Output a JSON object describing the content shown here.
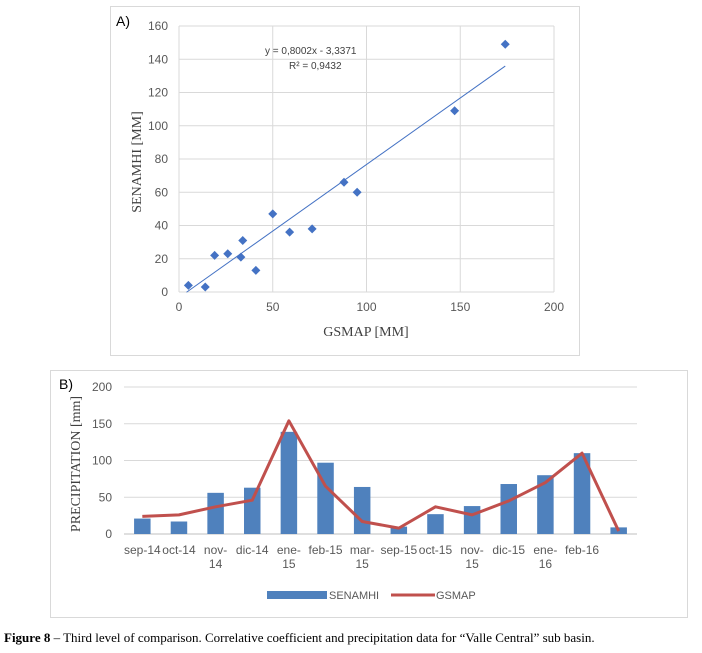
{
  "caption": {
    "label": "Figure 8",
    "text": " – Third level of comparison. Correlative coefficient and precipitation data for “Valle Central” sub basin."
  },
  "chart_data": [
    {
      "type": "scatter",
      "panel_label": "A)",
      "xlabel": "GSMAP [MM]",
      "ylabel": "SENAMHI [MM]",
      "xlim": [
        0,
        200
      ],
      "ylim": [
        0,
        160
      ],
      "xticks": [
        0,
        50,
        100,
        150,
        200
      ],
      "yticks": [
        0,
        20,
        40,
        60,
        80,
        100,
        120,
        140,
        160
      ],
      "grid": true,
      "points": [
        {
          "x": 5,
          "y": 4
        },
        {
          "x": 14,
          "y": 3
        },
        {
          "x": 19,
          "y": 22
        },
        {
          "x": 26,
          "y": 23
        },
        {
          "x": 33,
          "y": 21
        },
        {
          "x": 34,
          "y": 31
        },
        {
          "x": 41,
          "y": 13
        },
        {
          "x": 50,
          "y": 47
        },
        {
          "x": 59,
          "y": 36
        },
        {
          "x": 71,
          "y": 38
        },
        {
          "x": 88,
          "y": 66
        },
        {
          "x": 95,
          "y": 60
        },
        {
          "x": 147,
          "y": 109
        },
        {
          "x": 174,
          "y": 149
        }
      ],
      "trendline": {
        "slope": 0.8002,
        "intercept": -3.3371,
        "x_range": [
          4,
          174
        ]
      },
      "equation_text": "y = 0,8002x - 3,3371",
      "r2_text": "R² = 0,9432",
      "colors": {
        "points": "#4472c4",
        "trendline": "#4472c4"
      }
    },
    {
      "type": "bar",
      "panel_label": "B)",
      "ylabel": "PRECIPITATION [mm]",
      "ylim": [
        0,
        200
      ],
      "yticks": [
        0,
        50,
        100,
        150,
        200
      ],
      "grid": true,
      "categories": [
        "sep-14",
        "oct-14",
        "nov-14",
        "dic-14",
        "ene-15",
        "feb-15",
        "mar-15",
        "sep-15",
        "oct-15",
        "nov-15",
        "dic-15",
        "ene-16",
        "feb-16",
        ""
      ],
      "category_labels": [
        [
          "sep-14"
        ],
        [
          "oct-14"
        ],
        [
          "nov-",
          "14"
        ],
        [
          "dic-14"
        ],
        [
          "ene-",
          "15"
        ],
        [
          "feb-15"
        ],
        [
          "mar-",
          "15"
        ],
        [
          "sep-15"
        ],
        [
          "oct-15"
        ],
        [
          "nov-",
          "15"
        ],
        [
          "dic-15"
        ],
        [
          "ene-",
          "16"
        ],
        [
          "feb-16"
        ],
        [
          ""
        ]
      ],
      "series": [
        {
          "name": "SENAMHI",
          "kind": "bar",
          "color": "#4f81bd",
          "values": [
            21,
            17,
            56,
            63,
            139,
            97,
            64,
            10,
            27,
            38,
            68,
            80,
            110,
            9
          ]
        },
        {
          "name": "GSMAP",
          "kind": "line",
          "color": "#c0504d",
          "values": [
            24,
            26,
            37,
            46,
            154,
            65,
            17,
            8,
            37,
            26,
            45,
            70,
            110,
            4
          ]
        }
      ],
      "legend_position": "bottom"
    }
  ]
}
